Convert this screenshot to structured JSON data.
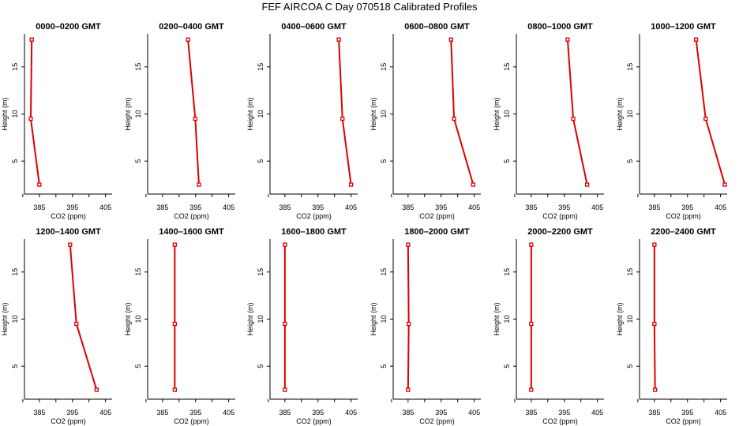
{
  "figure_title": "FEF AIRCOA C  Day 070518  Calibrated Profiles",
  "chart_data": [
    {
      "type": "line",
      "title": "0000–0200 GMT",
      "xlabel": "CO2 (ppm)",
      "ylabel": "Height (m)",
      "xticks": [
        "385",
        "395",
        "405"
      ],
      "yticks": [
        "5",
        "10",
        "15"
      ],
      "xlim": [
        380.5,
        407
      ],
      "ylim": [
        1.5,
        18.5
      ],
      "series": [
        {
          "x": [
            382.7,
            382.4,
            385.0
          ],
          "y": [
            17.9,
            9.5,
            2.5
          ]
        }
      ]
    },
    {
      "type": "line",
      "title": "0200–0400 GMT",
      "xlabel": "CO2 (ppm)",
      "ylabel": "Height (m)",
      "xticks": [
        "385",
        "395",
        "405"
      ],
      "yticks": [
        "5",
        "10",
        "15"
      ],
      "xlim": [
        380.5,
        407
      ],
      "ylim": [
        1.5,
        18.5
      ],
      "series": [
        {
          "x": [
            392.7,
            394.9,
            396.0
          ],
          "y": [
            17.9,
            9.5,
            2.5
          ]
        }
      ]
    },
    {
      "type": "line",
      "title": "0400–0600 GMT",
      "xlabel": "CO2 (ppm)",
      "ylabel": "Height (m)",
      "xticks": [
        "385",
        "395",
        "405"
      ],
      "yticks": [
        "5",
        "10",
        "15"
      ],
      "xlim": [
        380.5,
        407
      ],
      "ylim": [
        1.5,
        18.5
      ],
      "series": [
        {
          "x": [
            401.3,
            402.4,
            405.0
          ],
          "y": [
            17.9,
            9.5,
            2.5
          ]
        }
      ]
    },
    {
      "type": "line",
      "title": "0600–0800 GMT",
      "xlabel": "CO2 (ppm)",
      "ylabel": "Height (m)",
      "xticks": [
        "385",
        "395",
        "405"
      ],
      "yticks": [
        "5",
        "10",
        "15"
      ],
      "xlim": [
        380.5,
        407
      ],
      "ylim": [
        1.5,
        18.5
      ],
      "series": [
        {
          "x": [
            398.0,
            398.9,
            404.7
          ],
          "y": [
            17.9,
            9.5,
            2.5
          ]
        }
      ]
    },
    {
      "type": "line",
      "title": "0800–1000 GMT",
      "xlabel": "CO2 (ppm)",
      "ylabel": "Height (m)",
      "xticks": [
        "385",
        "395",
        "405"
      ],
      "yticks": [
        "5",
        "10",
        "15"
      ],
      "xlim": [
        380.5,
        407
      ],
      "ylim": [
        1.5,
        18.5
      ],
      "series": [
        {
          "x": [
            396.0,
            397.7,
            401.9
          ],
          "y": [
            17.9,
            9.5,
            2.5
          ]
        }
      ]
    },
    {
      "type": "line",
      "title": "1000–1200 GMT",
      "xlabel": "CO2 (ppm)",
      "ylabel": "Height (m)",
      "xticks": [
        "385",
        "395",
        "405"
      ],
      "yticks": [
        "5",
        "10",
        "15"
      ],
      "xlim": [
        380.5,
        407
      ],
      "ylim": [
        1.5,
        18.5
      ],
      "series": [
        {
          "x": [
            397.6,
            400.5,
            406.3
          ],
          "y": [
            17.9,
            9.5,
            2.5
          ]
        }
      ]
    },
    {
      "type": "line",
      "title": "1200–1400 GMT",
      "xlabel": "CO2 (ppm)",
      "ylabel": "Height (m)",
      "xticks": [
        "385",
        "395",
        "405"
      ],
      "yticks": [
        "5",
        "10",
        "15"
      ],
      "xlim": [
        380.5,
        407
      ],
      "ylim": [
        1.5,
        18.5
      ],
      "series": [
        {
          "x": [
            394.3,
            396.2,
            402.3
          ],
          "y": [
            17.9,
            9.5,
            2.5
          ]
        }
      ]
    },
    {
      "type": "line",
      "title": "1400–1600 GMT",
      "xlabel": "CO2 (ppm)",
      "ylabel": "Height (m)",
      "xticks": [
        "385",
        "395",
        "405"
      ],
      "yticks": [
        "5",
        "10",
        "15"
      ],
      "xlim": [
        380.5,
        407
      ],
      "ylim": [
        1.5,
        18.5
      ],
      "series": [
        {
          "x": [
            388.7,
            388.7,
            388.7
          ],
          "y": [
            17.9,
            9.5,
            2.5
          ]
        }
      ]
    },
    {
      "type": "line",
      "title": "1600–1800 GMT",
      "xlabel": "CO2 (ppm)",
      "ylabel": "Height (m)",
      "xticks": [
        "385",
        "395",
        "405"
      ],
      "yticks": [
        "5",
        "10",
        "15"
      ],
      "xlim": [
        380.5,
        407
      ],
      "ylim": [
        1.5,
        18.5
      ],
      "series": [
        {
          "x": [
            385.0,
            385.0,
            385.0
          ],
          "y": [
            17.9,
            9.5,
            2.5
          ]
        }
      ]
    },
    {
      "type": "line",
      "title": "1800–2000 GMT",
      "xlabel": "CO2 (ppm)",
      "ylabel": "Height (m)",
      "xticks": [
        "385",
        "395",
        "405"
      ],
      "yticks": [
        "5",
        "10",
        "15"
      ],
      "xlim": [
        380.5,
        407
      ],
      "ylim": [
        1.5,
        18.5
      ],
      "series": [
        {
          "x": [
            385.0,
            385.2,
            385.0
          ],
          "y": [
            17.9,
            9.5,
            2.5
          ]
        }
      ]
    },
    {
      "type": "line",
      "title": "2000–2200 GMT",
      "xlabel": "CO2 (ppm)",
      "ylabel": "Height (m)",
      "xticks": [
        "385",
        "395",
        "405"
      ],
      "yticks": [
        "5",
        "10",
        "15"
      ],
      "xlim": [
        380.5,
        407
      ],
      "ylim": [
        1.5,
        18.5
      ],
      "series": [
        {
          "x": [
            385.0,
            385.0,
            385.0
          ],
          "y": [
            17.9,
            9.5,
            2.5
          ]
        }
      ]
    },
    {
      "type": "line",
      "title": "2200–2400 GMT",
      "xlabel": "CO2 (ppm)",
      "ylabel": "Height (m)",
      "xticks": [
        "385",
        "395",
        "405"
      ],
      "yticks": [
        "5",
        "10",
        "15"
      ],
      "xlim": [
        380.5,
        407
      ],
      "ylim": [
        1.5,
        18.5
      ],
      "series": [
        {
          "x": [
            385.0,
            385.0,
            385.2
          ],
          "y": [
            17.9,
            9.5,
            2.5
          ]
        }
      ]
    }
  ],
  "style": {
    "line_color": "#dd0000",
    "marker_color": "#dd0000",
    "axis_color": "#000000",
    "background": "#ffffff"
  }
}
